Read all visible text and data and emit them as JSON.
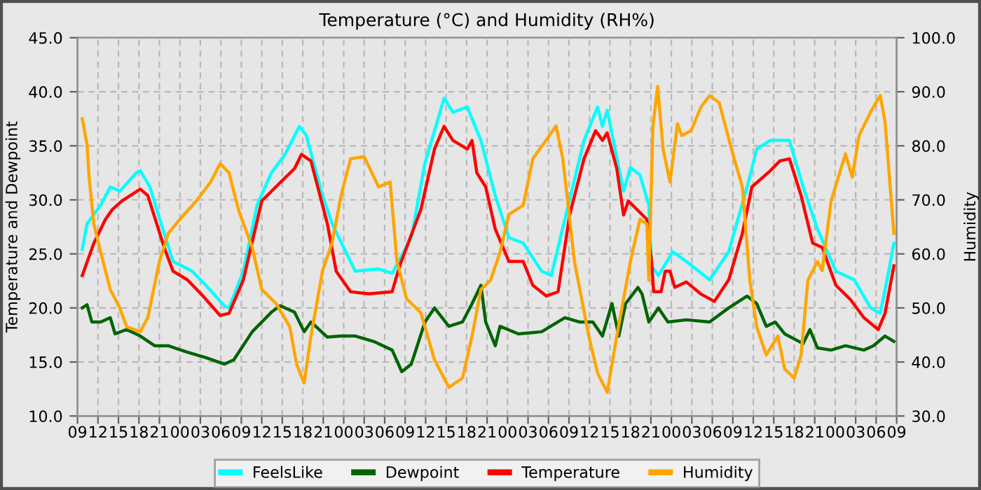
{
  "chart_data": {
    "type": "line",
    "title": "Temperature (°C) and Humidity (RH%)",
    "ylabel": "Temperature and Dewpoint",
    "y2label": "Humidity",
    "xlim": [
      9,
      129
    ],
    "xticks": [
      {
        "value": 9,
        "label": "09"
      },
      {
        "value": 12,
        "label": "12"
      },
      {
        "value": 15,
        "label": "15"
      },
      {
        "value": 18,
        "label": "18"
      },
      {
        "value": 21,
        "label": "21"
      },
      {
        "value": 24,
        "label": "00"
      },
      {
        "value": 27,
        "label": "03"
      },
      {
        "value": 30,
        "label": "06"
      },
      {
        "value": 33,
        "label": "09"
      },
      {
        "value": 36,
        "label": "12"
      },
      {
        "value": 39,
        "label": "15"
      },
      {
        "value": 42,
        "label": "18"
      },
      {
        "value": 45,
        "label": "21"
      },
      {
        "value": 48,
        "label": "00"
      },
      {
        "value": 51,
        "label": "03"
      },
      {
        "value": 54,
        "label": "06"
      },
      {
        "value": 57,
        "label": "09"
      },
      {
        "value": 60,
        "label": "12"
      },
      {
        "value": 63,
        "label": "15"
      },
      {
        "value": 66,
        "label": "18"
      },
      {
        "value": 69,
        "label": "21"
      },
      {
        "value": 72,
        "label": "00"
      },
      {
        "value": 75,
        "label": "03"
      },
      {
        "value": 78,
        "label": "06"
      },
      {
        "value": 81,
        "label": "09"
      },
      {
        "value": 84,
        "label": "12"
      },
      {
        "value": 87,
        "label": "15"
      },
      {
        "value": 90,
        "label": "18"
      },
      {
        "value": 93,
        "label": "21"
      },
      {
        "value": 96,
        "label": "00"
      },
      {
        "value": 99,
        "label": "03"
      },
      {
        "value": 102,
        "label": "06"
      },
      {
        "value": 105,
        "label": "09"
      },
      {
        "value": 108,
        "label": "12"
      },
      {
        "value": 111,
        "label": "15"
      },
      {
        "value": 114,
        "label": "18"
      },
      {
        "value": 117,
        "label": "21"
      },
      {
        "value": 120,
        "label": "00"
      },
      {
        "value": 123,
        "label": "03"
      },
      {
        "value": 126,
        "label": "06"
      },
      {
        "value": 129,
        "label": "09"
      }
    ],
    "ylim": [
      10,
      45
    ],
    "yticks": [
      {
        "value": 10,
        "label": "10.0"
      },
      {
        "value": 15,
        "label": "15.0"
      },
      {
        "value": 20,
        "label": "20.0"
      },
      {
        "value": 25,
        "label": "25.0"
      },
      {
        "value": 30,
        "label": "30.0"
      },
      {
        "value": 35,
        "label": "35.0"
      },
      {
        "value": 40,
        "label": "40.0"
      },
      {
        "value": 45,
        "label": "45.0"
      }
    ],
    "y2lim": [
      30,
      100
    ],
    "y2ticks": [
      {
        "value": 30,
        "label": "30.0"
      },
      {
        "value": 40,
        "label": "40.0"
      },
      {
        "value": 50,
        "label": "50.0"
      },
      {
        "value": 60,
        "label": "60.0"
      },
      {
        "value": 70,
        "label": "70.0"
      },
      {
        "value": 80,
        "label": "80.0"
      },
      {
        "value": 90,
        "label": "90.0"
      },
      {
        "value": 100,
        "label": "100.0"
      }
    ],
    "grid": true,
    "legend": "bottom",
    "line_style": "solid",
    "marker": "none",
    "series": [
      {
        "name": "FeelsLike",
        "color": "#00ffff",
        "x": [
          9.7,
          10.4,
          12.4,
          13.8,
          15.2,
          17.6,
          18.2,
          19.6,
          21.7,
          23.0,
          25.8,
          27.8,
          30.5,
          31.2,
          33.3,
          35.3,
          37.4,
          39.4,
          41.5,
          42.5,
          44.9,
          46.3,
          49.7,
          53.1,
          55.1,
          57.9,
          59.9,
          62.7,
          64.0,
          66.1,
          68.1,
          70.2,
          72.2,
          74.3,
          77.0,
          78.4,
          80.4,
          83.2,
          85.2,
          85.9,
          86.6,
          89.0,
          90.0,
          91.4,
          92.7,
          93.1,
          94.1,
          96.2,
          98.2,
          101.6,
          104.4,
          107.1,
          108.5,
          110.5,
          113.3,
          115.3,
          117.4,
          120.1,
          122.8,
          125.2,
          126.6,
          127.6,
          128.6
        ],
        "values": [
          25.4,
          27.8,
          29.5,
          31.2,
          30.8,
          32.5,
          32.7,
          31.2,
          26.9,
          24.3,
          23.4,
          22.1,
          20.2,
          20.0,
          23.4,
          29.5,
          32.5,
          34.2,
          36.8,
          36.0,
          30.4,
          27.8,
          23.4,
          23.6,
          23.2,
          26.5,
          33.4,
          39.4,
          38.1,
          38.6,
          35.5,
          30.4,
          26.5,
          26.0,
          23.4,
          23.0,
          28.2,
          35.5,
          38.6,
          36.8,
          38.3,
          30.8,
          33.0,
          32.3,
          29.5,
          23.9,
          23.0,
          25.2,
          24.3,
          22.6,
          25.2,
          31.2,
          34.7,
          35.5,
          35.5,
          31.2,
          27.3,
          23.4,
          22.6,
          20.0,
          19.5,
          22.6,
          26.0
        ]
      },
      {
        "name": "Dewpoint",
        "color": "#006400",
        "x": [
          9.7,
          10.4,
          11.1,
          12.4,
          13.8,
          14.5,
          16.2,
          18.2,
          20.3,
          22.3,
          25.1,
          27.8,
          30.5,
          31.9,
          34.6,
          37.4,
          38.7,
          40.8,
          42.2,
          43.2,
          45.6,
          47.6,
          49.7,
          52.4,
          55.1,
          56.5,
          57.9,
          59.9,
          61.3,
          63.4,
          65.4,
          66.8,
          68.1,
          68.8,
          70.2,
          70.9,
          73.6,
          77.0,
          80.4,
          82.5,
          84.5,
          85.9,
          87.3,
          88.3,
          89.3,
          91.1,
          91.7,
          92.7,
          94.1,
          95.5,
          98.2,
          101.6,
          104.4,
          107.1,
          108.5,
          109.9,
          111.2,
          112.6,
          115.3,
          116.3,
          117.4,
          119.4,
          121.5,
          124.2,
          125.6,
          127.3,
          128.6
        ],
        "values": [
          20.0,
          20.3,
          18.7,
          18.7,
          19.1,
          17.6,
          18.0,
          17.4,
          16.5,
          16.5,
          15.9,
          15.4,
          14.8,
          15.2,
          17.8,
          19.6,
          20.2,
          19.6,
          17.8,
          18.7,
          17.3,
          17.4,
          17.4,
          16.9,
          16.1,
          14.1,
          14.8,
          18.7,
          20.0,
          18.3,
          18.7,
          20.4,
          22.1,
          18.7,
          16.5,
          18.3,
          17.6,
          17.8,
          19.1,
          18.7,
          18.7,
          17.4,
          20.4,
          17.4,
          20.4,
          21.9,
          21.3,
          18.7,
          20.0,
          18.7,
          18.9,
          18.7,
          20.0,
          21.1,
          20.4,
          18.3,
          18.7,
          17.6,
          16.7,
          18.0,
          16.3,
          16.1,
          16.5,
          16.1,
          16.5,
          17.4,
          16.9
        ]
      },
      {
        "name": "Temperature",
        "color": "#ff0000",
        "x": [
          9.7,
          11.4,
          13.1,
          14.1,
          15.5,
          18.2,
          19.3,
          21.7,
          23.0,
          25.1,
          27.1,
          29.9,
          31.2,
          33.3,
          36.0,
          38.7,
          40.8,
          41.8,
          43.2,
          45.6,
          46.9,
          49.0,
          51.7,
          55.1,
          56.2,
          59.3,
          61.3,
          62.7,
          64.0,
          66.1,
          66.8,
          67.5,
          68.8,
          70.2,
          72.2,
          74.3,
          75.7,
          77.7,
          79.4,
          81.1,
          83.2,
          84.9,
          85.9,
          86.6,
          88.0,
          89.0,
          89.7,
          92.4,
          93.1,
          93.4,
          94.5,
          95.1,
          95.8,
          96.5,
          98.2,
          100.3,
          102.3,
          104.4,
          106.4,
          107.8,
          110.5,
          111.9,
          113.3,
          115.0,
          116.7,
          118.1,
          120.1,
          122.2,
          124.2,
          126.3,
          127.3,
          128.6
        ],
        "values": [
          23.0,
          26.0,
          28.2,
          29.1,
          29.9,
          31.0,
          30.4,
          25.6,
          23.4,
          22.6,
          21.3,
          19.3,
          19.5,
          22.6,
          29.9,
          31.6,
          32.9,
          34.2,
          33.6,
          27.8,
          23.4,
          21.5,
          21.3,
          21.5,
          23.9,
          29.1,
          34.7,
          36.8,
          35.5,
          34.7,
          35.5,
          32.5,
          31.2,
          27.3,
          24.3,
          24.3,
          22.1,
          21.1,
          21.5,
          28.6,
          33.8,
          36.4,
          35.5,
          36.2,
          32.9,
          28.6,
          29.9,
          28.2,
          24.3,
          21.5,
          21.5,
          23.4,
          23.4,
          21.9,
          22.4,
          21.3,
          20.6,
          22.6,
          26.9,
          31.2,
          32.7,
          33.6,
          33.8,
          30.4,
          26.0,
          25.6,
          22.1,
          20.8,
          19.1,
          18.0,
          19.5,
          23.9
        ]
      },
      {
        "name": "Humidity",
        "color": "#ffa500",
        "axis": "y2",
        "x": [
          9.7,
          10.4,
          10.7,
          11.4,
          12.4,
          13.8,
          15.2,
          16.2,
          18.2,
          19.3,
          21.0,
          22.3,
          24.0,
          26.4,
          28.5,
          29.9,
          31.2,
          32.6,
          34.6,
          36.0,
          38.1,
          40.1,
          41.1,
          42.2,
          43.2,
          44.9,
          46.3,
          47.6,
          49.0,
          51.0,
          53.1,
          54.8,
          55.8,
          57.2,
          59.3,
          61.3,
          63.4,
          65.4,
          66.8,
          68.1,
          69.5,
          70.9,
          72.2,
          74.3,
          75.7,
          77.7,
          79.1,
          80.1,
          81.8,
          83.9,
          85.2,
          86.6,
          88.0,
          90.0,
          91.4,
          92.4,
          92.7,
          93.3,
          94.0,
          94.8,
          95.8,
          96.9,
          97.5,
          98.9,
          100.3,
          101.6,
          103.0,
          105.0,
          106.4,
          107.5,
          108.5,
          109.9,
          111.6,
          112.6,
          114.0,
          115.0,
          116.0,
          117.4,
          118.1,
          119.4,
          121.5,
          122.5,
          123.5,
          125.2,
          126.6,
          127.3,
          128.0,
          128.6
        ],
        "values": [
          85.0,
          80.2,
          74.2,
          65.5,
          60.3,
          53.4,
          50.0,
          46.5,
          45.6,
          48.2,
          58.6,
          63.8,
          66.4,
          69.8,
          73.3,
          76.7,
          75.0,
          68.1,
          61.2,
          53.4,
          50.8,
          46.5,
          39.6,
          36.1,
          44.8,
          56.9,
          62.1,
          70.7,
          77.6,
          78.0,
          72.4,
          73.3,
          58.6,
          51.7,
          49.1,
          40.4,
          35.3,
          37.0,
          44.8,
          53.4,
          55.1,
          60.3,
          67.3,
          69.0,
          77.6,
          81.1,
          83.7,
          77.6,
          58.6,
          44.8,
          37.9,
          34.4,
          44.8,
          58.6,
          66.4,
          65.5,
          55.1,
          83.7,
          91.0,
          79.3,
          73.3,
          84.1,
          81.9,
          82.8,
          87.1,
          89.3,
          88.0,
          78.5,
          72.4,
          55.1,
          46.5,
          41.3,
          44.8,
          38.7,
          37.0,
          41.3,
          55.1,
          58.6,
          56.9,
          69.8,
          78.5,
          74.2,
          81.9,
          86.3,
          89.3,
          84.5,
          73.3,
          63.8
        ]
      }
    ]
  }
}
